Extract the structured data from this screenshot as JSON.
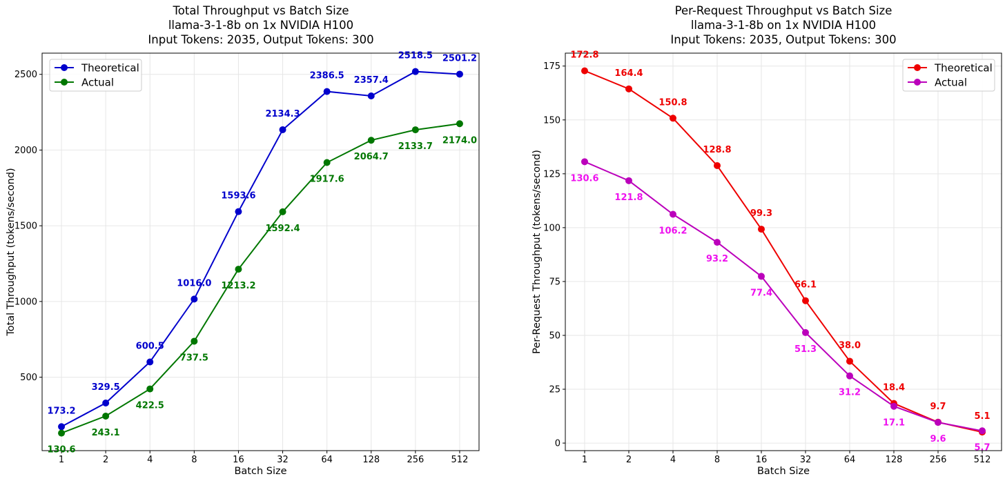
{
  "chart_data": [
    {
      "type": "line",
      "title_lines": [
        "Total Throughput vs Batch Size",
        "llama-3-1-8b on 1x NVIDIA H100",
        "Input Tokens: 2035, Output Tokens: 300"
      ],
      "xlabel": "Batch Size",
      "ylabel": "Total Throughput (tokens/second)",
      "categories": [
        "1",
        "2",
        "4",
        "8",
        "16",
        "32",
        "64",
        "128",
        "256",
        "512"
      ],
      "ylim": [
        15,
        2640
      ],
      "yticks": [
        500,
        1000,
        1500,
        2000,
        2500
      ],
      "grid": true,
      "legend_position": "upper-left",
      "series": [
        {
          "name": "Theoretical",
          "color": "#0000cc",
          "values": [
            173.2,
            329.5,
            600.5,
            1016.0,
            1593.6,
            2134.3,
            2386.5,
            2357.4,
            2518.5,
            2501.2
          ],
          "labels": [
            "173.2",
            "329.5",
            "600.5",
            "1016.0",
            "1593.6",
            "2134.3",
            "2386.5",
            "2357.4",
            "2518.5",
            "2501.2"
          ],
          "label_position": "above"
        },
        {
          "name": "Actual",
          "color": "#007700",
          "values": [
            130.6,
            243.1,
            422.5,
            737.5,
            1213.2,
            1592.4,
            1917.6,
            2064.7,
            2133.7,
            2174.0
          ],
          "labels": [
            "130.6",
            "243.1",
            "422.5",
            "737.5",
            "1213.2",
            "1592.4",
            "1917.6",
            "2064.7",
            "2133.7",
            "2174.0"
          ],
          "label_position": "below"
        }
      ]
    },
    {
      "type": "line",
      "title_lines": [
        "Per-Request Throughput vs Batch Size",
        "llama-3-1-8b on 1x NVIDIA H100",
        "Input Tokens: 2035, Output Tokens: 300"
      ],
      "xlabel": "Batch Size",
      "ylabel": "Per-Request Throughput (tokens/second)",
      "categories": [
        "1",
        "2",
        "4",
        "8",
        "16",
        "32",
        "64",
        "128",
        "256",
        "512"
      ],
      "ylim": [
        -3.5,
        181
      ],
      "yticks": [
        0,
        25,
        50,
        75,
        100,
        125,
        150,
        175
      ],
      "grid": true,
      "legend_position": "upper-right",
      "series": [
        {
          "name": "Theoretical",
          "color": "#ee0000",
          "values": [
            172.8,
            164.4,
            150.8,
            128.8,
            99.3,
            66.1,
            38.0,
            18.4,
            9.7,
            5.1
          ],
          "labels": [
            "172.8",
            "164.4",
            "150.8",
            "128.8",
            "99.3",
            "66.1",
            "38.0",
            "18.4",
            "9.7",
            "5.1"
          ],
          "label_position": "above"
        },
        {
          "name": "Actual",
          "color": "#bb00bb",
          "label_color": "#ee11ee",
          "values": [
            130.6,
            121.8,
            106.2,
            93.2,
            77.4,
            51.3,
            31.2,
            17.1,
            9.6,
            5.7
          ],
          "labels": [
            "130.6",
            "121.8",
            "106.2",
            "93.2",
            "77.4",
            "51.3",
            "31.2",
            "17.1",
            "9.6",
            "5.7"
          ],
          "label_position": "below"
        }
      ]
    }
  ]
}
